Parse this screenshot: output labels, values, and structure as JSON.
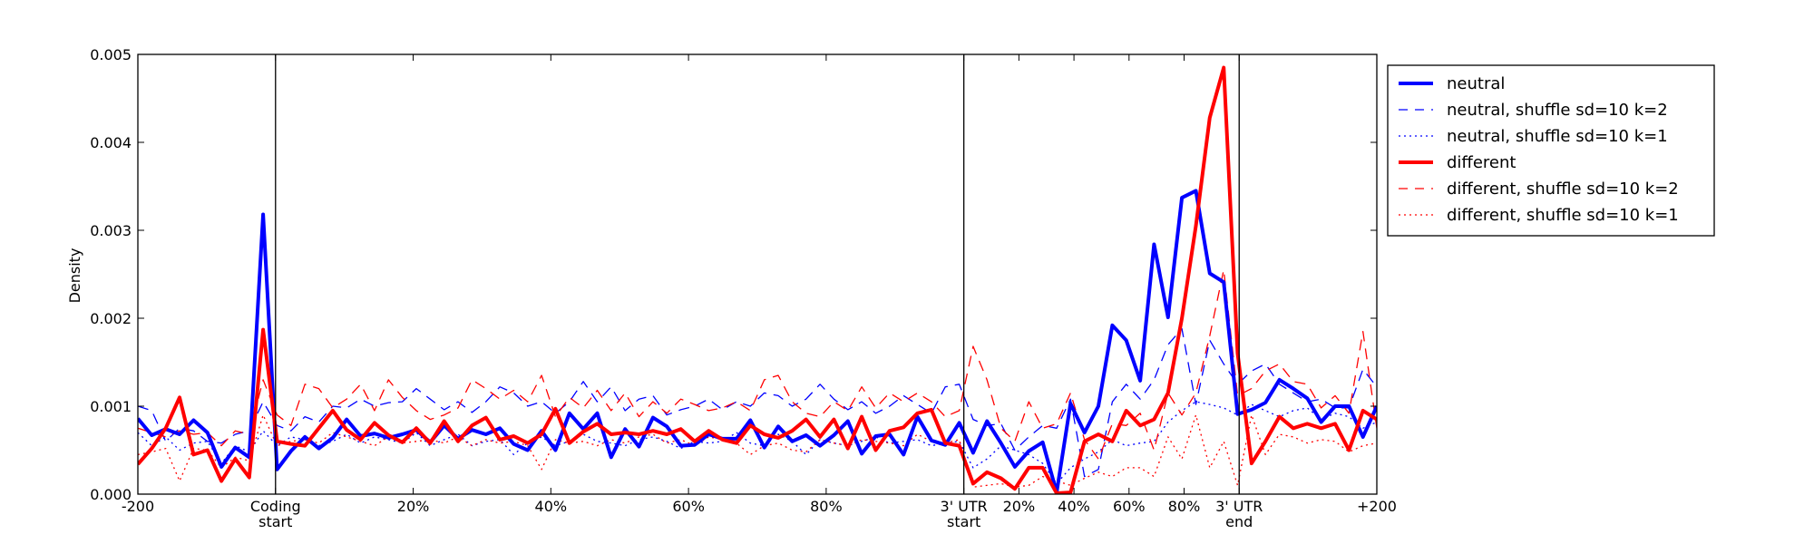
{
  "chart_data": {
    "type": "line",
    "ylabel": "Density",
    "ylim": [
      0,
      0.005
    ],
    "y_ticks": [
      "0.000",
      "0.001",
      "0.002",
      "0.003",
      "0.004",
      "0.005"
    ],
    "x_ticks": [
      {
        "pos": 0,
        "lines": [
          "-200"
        ]
      },
      {
        "pos": 20,
        "lines": [
          "Coding",
          "start"
        ]
      },
      {
        "pos": 40,
        "lines": [
          "20%"
        ]
      },
      {
        "pos": 60,
        "lines": [
          "40%"
        ]
      },
      {
        "pos": 80,
        "lines": [
          "60%"
        ]
      },
      {
        "pos": 100,
        "lines": [
          "80%"
        ]
      },
      {
        "pos": 120,
        "lines": [
          "3' UTR",
          "start"
        ]
      },
      {
        "pos": 128,
        "lines": [
          "20%"
        ]
      },
      {
        "pos": 136,
        "lines": [
          "40%"
        ]
      },
      {
        "pos": 144,
        "lines": [
          "60%"
        ]
      },
      {
        "pos": 152,
        "lines": [
          "80%"
        ]
      },
      {
        "pos": 160,
        "lines": [
          "3' UTR",
          "end"
        ]
      },
      {
        "pos": 180,
        "lines": [
          "+200"
        ]
      }
    ],
    "xlim": [
      0,
      180
    ],
    "vlines": [
      20,
      120,
      160
    ],
    "grid": false,
    "legend_position": "outside-top-right",
    "series": [
      {
        "name": "neutral",
        "color": "#0000ff",
        "style": "solid",
        "width": 4,
        "values": [
          0.00086,
          0.00067,
          0.00074,
          0.00068,
          0.00084,
          0.0007,
          0.00031,
          0.00053,
          0.00042,
          0.00318,
          0.00028,
          0.00049,
          0.00065,
          0.00052,
          0.00064,
          0.00085,
          0.00066,
          0.00069,
          0.00064,
          0.00068,
          0.00073,
          0.00059,
          0.00078,
          0.00063,
          0.00073,
          0.00068,
          0.00075,
          0.00057,
          0.0005,
          0.00072,
          0.0005,
          0.00092,
          0.00074,
          0.00092,
          0.00042,
          0.00074,
          0.00054,
          0.00087,
          0.00077,
          0.00055,
          0.00056,
          0.00068,
          0.00063,
          0.00063,
          0.00084,
          0.00053,
          0.00077,
          0.0006,
          0.00067,
          0.00055,
          0.00067,
          0.00083,
          0.00046,
          0.00066,
          0.00068,
          0.00045,
          0.00088,
          0.00061,
          0.00056,
          0.00081,
          0.00047,
          0.00083,
          0.00058,
          0.00031,
          0.00049,
          0.00059,
          2e-05,
          0.00103,
          0.0007,
          0.001,
          0.00192,
          0.00175,
          0.00129,
          0.00284,
          0.00201,
          0.00337,
          0.00345,
          0.00251,
          0.00241,
          0.00091,
          0.00096,
          0.00104,
          0.0013,
          0.0012,
          0.00109,
          0.00082,
          0.001,
          0.001,
          0.00065,
          0.001
        ]
      },
      {
        "name": "neutral, shuffle sd=10 k=2",
        "color": "#0000ff",
        "style": "dashed",
        "width": 1.3,
        "values": [
          0.001,
          0.00095,
          0.0006,
          0.00075,
          0.00072,
          0.0006,
          0.00058,
          0.00068,
          0.00072,
          0.00105,
          0.00078,
          0.00072,
          0.00088,
          0.00082,
          0.001,
          0.00098,
          0.00108,
          0.001,
          0.00104,
          0.00105,
          0.0012,
          0.00108,
          0.00096,
          0.00105,
          0.00093,
          0.00105,
          0.00122,
          0.00115,
          0.001,
          0.00105,
          0.00092,
          0.00105,
          0.00128,
          0.00105,
          0.00122,
          0.00095,
          0.00108,
          0.00112,
          0.0009,
          0.00096,
          0.001,
          0.00108,
          0.00096,
          0.00105,
          0.001,
          0.00115,
          0.00112,
          0.001,
          0.00108,
          0.00125,
          0.00108,
          0.00096,
          0.00105,
          0.00092,
          0.001,
          0.00112,
          0.00102,
          0.00092,
          0.00122,
          0.00125,
          0.00085,
          0.00078,
          0.0008,
          0.0005,
          0.00065,
          0.00078,
          0.00075,
          0.00108,
          0.0002,
          0.00028,
          0.00105,
          0.00125,
          0.00108,
          0.0013,
          0.0017,
          0.00188,
          0.00102,
          0.00175,
          0.00148,
          0.00125,
          0.0014,
          0.00148,
          0.00125,
          0.00115,
          0.00105,
          0.00108,
          0.00098,
          0.00098,
          0.00142,
          0.00122
        ]
      },
      {
        "name": "neutral, shuffle sd=10 k=1",
        "color": "#0000ff",
        "style": "dotted",
        "width": 1.3,
        "values": [
          0.0007,
          0.00055,
          0.00065,
          0.0005,
          0.00058,
          0.0006,
          0.00035,
          0.00055,
          0.00048,
          0.00072,
          0.00055,
          0.00065,
          0.00062,
          0.00055,
          0.0006,
          0.00068,
          0.00058,
          0.00065,
          0.00062,
          0.00058,
          0.0007,
          0.00055,
          0.00062,
          0.00068,
          0.00055,
          0.0006,
          0.00062,
          0.00045,
          0.00058,
          0.00065,
          0.00055,
          0.0006,
          0.00068,
          0.0006,
          0.00058,
          0.00055,
          0.00062,
          0.00065,
          0.0006,
          0.00052,
          0.0006,
          0.00058,
          0.0006,
          0.0007,
          0.00058,
          0.00055,
          0.00068,
          0.0006,
          0.00045,
          0.00062,
          0.00058,
          0.00055,
          0.0006,
          0.00065,
          0.00058,
          0.0006,
          0.00062,
          0.00055,
          0.00058,
          0.0006,
          0.0003,
          0.0004,
          0.00055,
          0.0005,
          0.00045,
          0.00035,
          0.00012,
          0.0003,
          0.0004,
          0.00048,
          0.00062,
          0.00055,
          0.00058,
          0.0006,
          0.00082,
          0.00095,
          0.00105,
          0.00102,
          0.00098,
          0.0009,
          0.00102,
          0.00095,
          0.00088,
          0.00095,
          0.00098,
          0.00085,
          0.00092,
          0.00088,
          0.00075,
          0.00082
        ]
      },
      {
        "name": "different",
        "color": "#ff0000",
        "style": "solid",
        "width": 4,
        "values": [
          0.00034,
          0.00052,
          0.00075,
          0.0011,
          0.00045,
          0.0005,
          0.00015,
          0.0004,
          0.00019,
          0.00187,
          0.0006,
          0.00057,
          0.00055,
          0.00075,
          0.00095,
          0.00073,
          0.00062,
          0.00081,
          0.00067,
          0.00059,
          0.00075,
          0.00058,
          0.00083,
          0.0006,
          0.00078,
          0.00087,
          0.00062,
          0.00066,
          0.00058,
          0.00068,
          0.00097,
          0.00058,
          0.00071,
          0.0008,
          0.00068,
          0.0007,
          0.00068,
          0.00072,
          0.00068,
          0.00074,
          0.0006,
          0.00072,
          0.00062,
          0.00058,
          0.00078,
          0.00068,
          0.00064,
          0.00072,
          0.00085,
          0.00065,
          0.00085,
          0.00052,
          0.00088,
          0.0005,
          0.00072,
          0.00076,
          0.00092,
          0.00096,
          0.00058,
          0.00055,
          0.00012,
          0.00025,
          0.00018,
          6e-05,
          0.0003,
          0.0003,
          1e-05,
          2e-05,
          0.0006,
          0.00068,
          0.0006,
          0.00095,
          0.00078,
          0.00085,
          0.00115,
          0.002,
          0.00305,
          0.00428,
          0.00485,
          0.0016,
          0.00035,
          0.0006,
          0.00088,
          0.00075,
          0.0008,
          0.00075,
          0.0008,
          0.0005,
          0.00095,
          0.00085
        ]
      },
      {
        "name": "different, shuffle sd=10 k=2",
        "color": "#ff0000",
        "style": "dashed",
        "width": 1.3,
        "values": [
          0.00075,
          0.0007,
          0.00065,
          0.00072,
          0.00068,
          0.0007,
          0.00055,
          0.00072,
          0.00068,
          0.0013,
          0.0009,
          0.00078,
          0.00125,
          0.0012,
          0.00098,
          0.00108,
          0.00125,
          0.00095,
          0.0013,
          0.0011,
          0.00095,
          0.00085,
          0.0009,
          0.00098,
          0.0013,
          0.0012,
          0.00108,
          0.00118,
          0.00105,
          0.00135,
          0.00088,
          0.0011,
          0.00098,
          0.00118,
          0.00095,
          0.00115,
          0.00088,
          0.00105,
          0.00092,
          0.00108,
          0.00102,
          0.00095,
          0.00098,
          0.00105,
          0.00095,
          0.0013,
          0.00135,
          0.00105,
          0.00092,
          0.00088,
          0.00105,
          0.00095,
          0.00122,
          0.00098,
          0.00115,
          0.00105,
          0.00115,
          0.00105,
          0.00088,
          0.00095,
          0.00168,
          0.0013,
          0.00075,
          0.0006,
          0.00105,
          0.00075,
          0.0008,
          0.00115,
          0.00062,
          0.0004,
          0.0008,
          0.00078,
          0.00092,
          0.0005,
          0.00115,
          0.0009,
          0.00115,
          0.0018,
          0.00255,
          0.00112,
          0.0012,
          0.0014,
          0.00148,
          0.00128,
          0.00125,
          0.00098,
          0.00112,
          0.00092,
          0.00185,
          0.00075
        ]
      },
      {
        "name": "different, shuffle sd=10 k=1",
        "color": "#ff0000",
        "style": "dotted",
        "width": 1.3,
        "values": [
          0.00045,
          0.00048,
          0.00052,
          0.00015,
          0.00052,
          0.0005,
          0.0003,
          0.00042,
          0.00038,
          0.0009,
          0.00055,
          0.0006,
          0.00062,
          0.00058,
          0.0007,
          0.00065,
          0.0006,
          0.00055,
          0.00065,
          0.00058,
          0.0006,
          0.00062,
          0.00058,
          0.00065,
          0.00055,
          0.00062,
          0.00058,
          0.0006,
          0.00055,
          0.00028,
          0.00062,
          0.00058,
          0.0006,
          0.00055,
          0.00062,
          0.00058,
          0.00065,
          0.00068,
          0.00058,
          0.00062,
          0.00055,
          0.00065,
          0.00062,
          0.00058,
          0.00045,
          0.00055,
          0.00058,
          0.0005,
          0.00048,
          0.00062,
          0.00058,
          0.00055,
          0.00062,
          0.0006,
          0.00058,
          0.00055,
          0.00068,
          0.0006,
          0.00058,
          0.00062,
          8e-05,
          0.0001,
          0.00012,
          8e-05,
          0.0001,
          0.0002,
          0.00015,
          0.0001,
          0.00018,
          0.00025,
          0.0002,
          0.0003,
          0.0003,
          0.0002,
          0.00065,
          0.0004,
          0.0009,
          0.0003,
          0.0006,
          0.0001,
          0.0009,
          0.00045,
          0.00068,
          0.00065,
          0.00058,
          0.00062,
          0.0006,
          0.00048,
          0.00055,
          0.00058
        ]
      }
    ]
  }
}
